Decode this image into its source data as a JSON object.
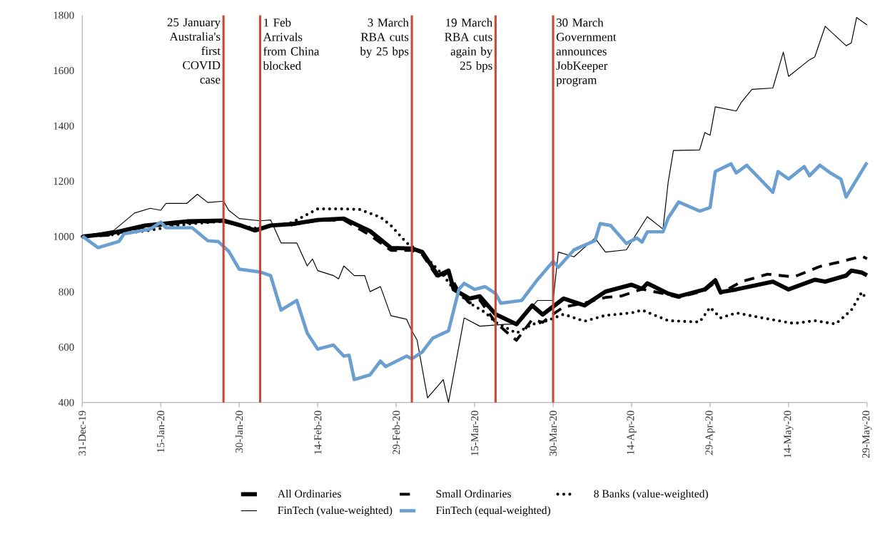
{
  "chart_data": {
    "type": "line",
    "xlim": [
      "2019-12-31",
      "2020-05-29"
    ],
    "xticks": [
      {
        "value": "2019-12-31",
        "label": "31-Dec-19"
      },
      {
        "value": "2020-01-15",
        "label": "15-Jan-20"
      },
      {
        "value": "2020-01-30",
        "label": "30-Jan-20"
      },
      {
        "value": "2020-02-14",
        "label": "14-Feb-20"
      },
      {
        "value": "2020-02-29",
        "label": "29-Feb-20"
      },
      {
        "value": "2020-03-15",
        "label": "15-Mar-20"
      },
      {
        "value": "2020-03-30",
        "label": "30-Mar-20"
      },
      {
        "value": "2020-04-14",
        "label": "14-Apr-20"
      },
      {
        "value": "2020-04-29",
        "label": "29-Apr-20"
      },
      {
        "value": "2020-05-14",
        "label": "14-May-20"
      },
      {
        "value": "2020-05-29",
        "label": "29-May-20"
      }
    ],
    "ylim": [
      400,
      1800
    ],
    "yticks": [
      400,
      600,
      800,
      1000,
      1200,
      1400,
      1600,
      1800
    ],
    "grid": false,
    "legend": "bottom",
    "ref_lines": [
      {
        "axis": "x",
        "value": "2020-01-27",
        "label": "25 January Australia's first COVID case",
        "color": "#c9493a"
      },
      {
        "axis": "x",
        "value": "2020-02-03",
        "label": "1 Feb Arrivals from China blocked",
        "color": "#c9493a"
      },
      {
        "axis": "x",
        "value": "2020-03-03",
        "label": "3 March RBA cuts by 25 bps",
        "color": "#c9493a"
      },
      {
        "axis": "x",
        "value": "2020-03-19",
        "label": "19 March RBA cuts again by 25 bps",
        "color": "#c9493a"
      },
      {
        "axis": "x",
        "value": "2020-03-30",
        "label": "30 March Government announces JobKeeper program",
        "color": "#c9493a"
      }
    ],
    "series": [
      {
        "name": "All Ordinaries",
        "color": "#000000",
        "line_style": "solid",
        "x": [
          "2019-12-31",
          "2020-01-05",
          "2020-01-12",
          "2020-01-20",
          "2020-01-27",
          "2020-01-30",
          "2020-02-02",
          "2020-02-05",
          "2020-02-09",
          "2020-02-14",
          "2020-02-19",
          "2020-02-24",
          "2020-02-28",
          "2020-03-03",
          "2020-03-05",
          "2020-03-08",
          "2020-03-10",
          "2020-03-11",
          "2020-03-14",
          "2020-03-16",
          "2020-03-19",
          "2020-03-23",
          "2020-03-26",
          "2020-03-28",
          "2020-04-01",
          "2020-04-05",
          "2020-04-09",
          "2020-04-14",
          "2020-04-16",
          "2020-04-17",
          "2020-04-21",
          "2020-04-23",
          "2020-04-28",
          "2020-04-30",
          "2020-05-01",
          "2020-05-04",
          "2020-05-11",
          "2020-05-14",
          "2020-05-19",
          "2020-05-21",
          "2020-05-25",
          "2020-05-26",
          "2020-05-28",
          "2020-05-29"
        ],
        "values": [
          1000,
          1010,
          1040,
          1055,
          1058,
          1042,
          1022,
          1040,
          1045,
          1060,
          1065,
          1020,
          959,
          957,
          944,
          859,
          877,
          809,
          776,
          784,
          719,
          683,
          751,
          718,
          776,
          751,
          801,
          826,
          811,
          831,
          794,
          784,
          809,
          842,
          799,
          809,
          837,
          809,
          844,
          837,
          859,
          877,
          870,
          860
        ]
      },
      {
        "name": "Small Ordinaries",
        "color": "#000000",
        "line_style": "dashed",
        "x": [
          "2019-12-31",
          "2020-01-05",
          "2020-01-12",
          "2020-01-20",
          "2020-01-27",
          "2020-01-30",
          "2020-02-02",
          "2020-02-05",
          "2020-02-09",
          "2020-02-14",
          "2020-02-19",
          "2020-02-24",
          "2020-02-28",
          "2020-03-03",
          "2020-03-05",
          "2020-03-08",
          "2020-03-10",
          "2020-03-12",
          "2020-03-14",
          "2020-03-16",
          "2020-03-19",
          "2020-03-22",
          "2020-03-23",
          "2020-03-26",
          "2020-03-28",
          "2020-03-30",
          "2020-04-01",
          "2020-04-05",
          "2020-04-09",
          "2020-04-12",
          "2020-04-16",
          "2020-04-21",
          "2020-04-23",
          "2020-04-28",
          "2020-04-30",
          "2020-05-01",
          "2020-05-05",
          "2020-05-10",
          "2020-05-15",
          "2020-05-20",
          "2020-05-24",
          "2020-05-28",
          "2020-05-29"
        ],
        "values": [
          1000,
          1005,
          1035,
          1050,
          1055,
          1040,
          1025,
          1040,
          1042,
          1058,
          1060,
          1005,
          950,
          950,
          935,
          850,
          870,
          800,
          760,
          770,
          690,
          640,
          625,
          700,
          690,
          720,
          745,
          760,
          780,
          785,
          810,
          790,
          780,
          805,
          835,
          795,
          837,
          864,
          854,
          892,
          909,
          929,
          920
        ]
      },
      {
        "name": "8 Banks (value-weighted)",
        "color": "#000000",
        "line_style": "dotted",
        "x": [
          "2019-12-31",
          "2020-01-05",
          "2020-01-12",
          "2020-01-20",
          "2020-01-27",
          "2020-01-30",
          "2020-02-02",
          "2020-02-05",
          "2020-02-09",
          "2020-02-12",
          "2020-02-14",
          "2020-02-19",
          "2020-02-22",
          "2020-02-26",
          "2020-02-28",
          "2020-03-02",
          "2020-03-05",
          "2020-03-09",
          "2020-03-11",
          "2020-03-14",
          "2020-03-17",
          "2020-03-19",
          "2020-03-23",
          "2020-03-26",
          "2020-03-28",
          "2020-04-01",
          "2020-04-05",
          "2020-04-09",
          "2020-04-14",
          "2020-04-16",
          "2020-04-21",
          "2020-04-27",
          "2020-04-29",
          "2020-05-01",
          "2020-05-04",
          "2020-05-09",
          "2020-05-15",
          "2020-05-19",
          "2020-05-23",
          "2020-05-26",
          "2020-05-28",
          "2020-05-29"
        ],
        "values": [
          1000,
          1005,
          1020,
          1045,
          1055,
          1040,
          1030,
          1040,
          1050,
          1080,
          1100,
          1100,
          1098,
          1070,
          1040,
          977,
          940,
          860,
          810,
          760,
          726,
          690,
          651,
          683,
          690,
          719,
          694,
          715,
          724,
          734,
          696,
          691,
          744,
          706,
          724,
          706,
          686,
          696,
          684,
          734,
          799,
          771
        ]
      },
      {
        "name": "FinTech (value-weighted)",
        "color": "#000000",
        "line_style": "solid",
        "x": [
          "2019-12-31",
          "2020-01-06",
          "2020-01-10",
          "2020-01-13",
          "2020-01-15",
          "2020-01-16",
          "2020-01-20",
          "2020-01-22",
          "2020-01-24",
          "2020-01-27",
          "2020-01-28",
          "2020-01-30",
          "2020-02-03",
          "2020-02-05",
          "2020-02-07",
          "2020-02-10",
          "2020-02-12",
          "2020-02-13",
          "2020-02-14",
          "2020-02-17",
          "2020-02-18",
          "2020-02-19",
          "2020-02-21",
          "2020-02-23",
          "2020-02-24",
          "2020-02-26",
          "2020-02-28",
          "2020-03-02",
          "2020-03-03",
          "2020-03-04",
          "2020-03-06",
          "2020-03-09",
          "2020-03-10",
          "2020-03-13",
          "2020-03-16",
          "2020-03-21",
          "2020-03-23",
          "2020-03-27",
          "2020-03-30",
          "2020-03-31",
          "2020-04-03",
          "2020-04-07",
          "2020-04-09",
          "2020-04-13",
          "2020-04-17",
          "2020-04-20",
          "2020-04-21",
          "2020-04-22",
          "2020-04-27",
          "2020-04-28",
          "2020-04-29",
          "2020-04-30",
          "2020-05-04",
          "2020-05-05",
          "2020-05-07",
          "2020-05-11",
          "2020-05-13",
          "2020-05-14",
          "2020-05-18",
          "2020-05-19",
          "2020-05-21",
          "2020-05-25",
          "2020-05-26",
          "2020-05-27",
          "2020-05-29"
        ],
        "values": [
          1002,
          1022,
          1085,
          1102,
          1095,
          1120,
          1120,
          1153,
          1123,
          1128,
          1095,
          1065,
          1057,
          1060,
          977,
          977,
          894,
          919,
          877,
          859,
          847,
          894,
          859,
          859,
          801,
          819,
          714,
          701,
          659,
          626,
          417,
          483,
          400,
          706,
          676,
          683,
          683,
          769,
          769,
          944,
          927,
          995,
          944,
          952,
          1072,
          1027,
          1198,
          1311,
          1313,
          1376,
          1366,
          1469,
          1454,
          1486,
          1532,
          1537,
          1667,
          1579,
          1639,
          1649,
          1760,
          1690,
          1700,
          1792,
          1765
        ]
      },
      {
        "name": "FinTech (equal-weighted)",
        "color": "#6b9fd0",
        "line_style": "solid",
        "x": [
          "2019-12-31",
          "2020-01-03",
          "2020-01-07",
          "2020-01-08",
          "2020-01-13",
          "2020-01-15",
          "2020-01-16",
          "2020-01-21",
          "2020-01-24",
          "2020-01-26",
          "2020-01-28",
          "2020-01-30",
          "2020-02-03",
          "2020-02-05",
          "2020-02-07",
          "2020-02-10",
          "2020-02-12",
          "2020-02-14",
          "2020-02-17",
          "2020-02-19",
          "2020-02-20",
          "2020-02-21",
          "2020-02-24",
          "2020-02-26",
          "2020-02-27",
          "2020-03-02",
          "2020-03-03",
          "2020-03-05",
          "2020-03-07",
          "2020-03-10",
          "2020-03-12",
          "2020-03-13",
          "2020-03-15",
          "2020-03-17",
          "2020-03-19",
          "2020-03-20",
          "2020-03-24",
          "2020-03-27",
          "2020-03-30",
          "2020-03-31",
          "2020-04-03",
          "2020-04-07",
          "2020-04-08",
          "2020-04-10",
          "2020-04-13",
          "2020-04-15",
          "2020-04-16",
          "2020-04-17",
          "2020-04-20",
          "2020-04-21",
          "2020-04-23",
          "2020-04-27",
          "2020-04-29",
          "2020-04-30",
          "2020-05-03",
          "2020-05-04",
          "2020-05-06",
          "2020-05-11",
          "2020-05-12",
          "2020-05-14",
          "2020-05-17",
          "2020-05-18",
          "2020-05-20",
          "2020-05-22",
          "2020-05-24",
          "2020-05-25",
          "2020-05-29"
        ],
        "values": [
          1002,
          960,
          982,
          1010,
          1027,
          1052,
          1032,
          1032,
          985,
          982,
          947,
          882,
          872,
          859,
          734,
          769,
          651,
          593,
          608,
          568,
          571,
          483,
          500,
          550,
          530,
          568,
          558,
          583,
          633,
          659,
          809,
          831,
          809,
          819,
          794,
          759,
          769,
          844,
          910,
          889,
          952,
          985,
          1047,
          1040,
          975,
          995,
          980,
          1017,
          1017,
          1067,
          1125,
          1092,
          1105,
          1235,
          1263,
          1230,
          1258,
          1160,
          1235,
          1208,
          1253,
          1220,
          1258,
          1230,
          1208,
          1143,
          1268
        ]
      }
    ]
  }
}
